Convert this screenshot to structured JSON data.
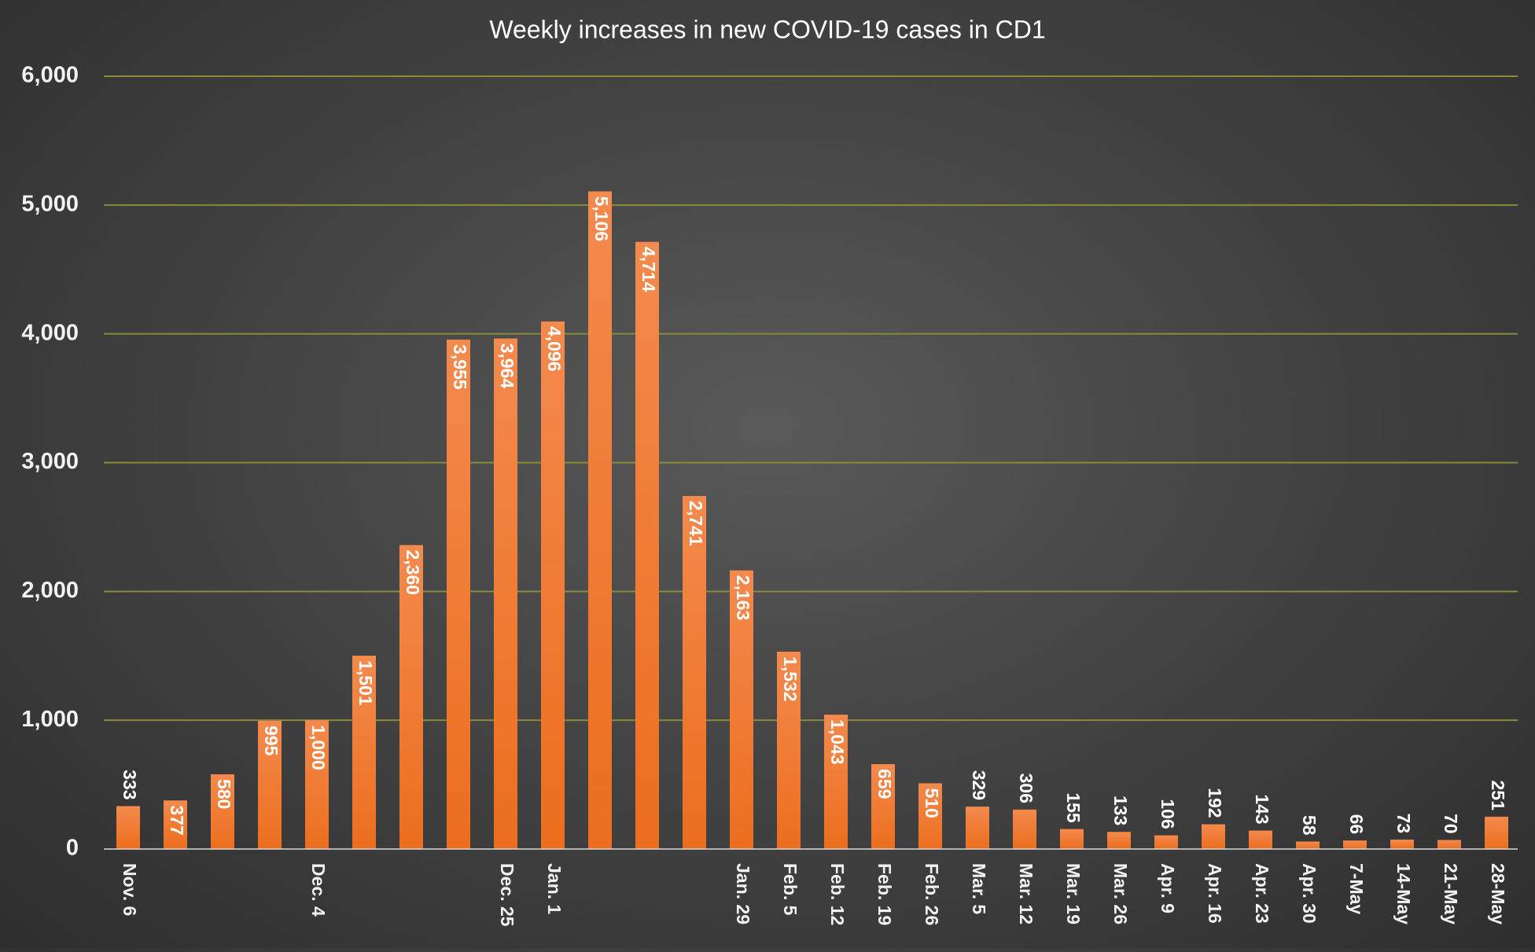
{
  "chart_data": {
    "type": "bar",
    "title": "Weekly increases in new COVID-19 cases in CD1",
    "xlabel": "",
    "ylabel": "",
    "ylim": [
      0,
      6000
    ],
    "yticks": [
      "0",
      "1,000",
      "2,000",
      "3,000",
      "4,000",
      "5,000",
      "6,000"
    ],
    "grid": true,
    "legend": "none",
    "colors": {
      "bar_top": "#f38a4e",
      "bar_bottom": "#ec6e1e",
      "grid": "#8a8a3a",
      "text": "#ffffff"
    },
    "categories": [
      "Nov. 6",
      "",
      "",
      "",
      "Dec. 4",
      "",
      "",
      "",
      "Dec. 25",
      "Jan. 1",
      "",
      "",
      "",
      "Jan. 29",
      "Feb. 5",
      "Feb. 12",
      "Feb. 19",
      "Feb. 26",
      "Mar. 5",
      "Mar. 12",
      "Mar. 19",
      "Mar. 26",
      "Apr. 9",
      "Apr. 16",
      "Apr. 23",
      "Apr. 30",
      "7-May",
      "14-May",
      "21-May",
      "28-May"
    ],
    "values": [
      333,
      377,
      580,
      995,
      1000,
      1501,
      2360,
      3955,
      3964,
      4096,
      5106,
      4714,
      2741,
      2163,
      1532,
      1043,
      659,
      510,
      329,
      306,
      155,
      133,
      106,
      192,
      143,
      58,
      66,
      73,
      70,
      251
    ],
    "value_labels": [
      "333",
      "377",
      "580",
      "995",
      "1,000",
      "1,501",
      "2,360",
      "3,955",
      "3,964",
      "4,096",
      "5,106",
      "4,714",
      "2,741",
      "2,163",
      "1,532",
      "1,043",
      "659",
      "510",
      "329",
      "306",
      "155",
      "133",
      "106",
      "192",
      "143",
      "58",
      "66",
      "73",
      "70",
      "251"
    ]
  }
}
